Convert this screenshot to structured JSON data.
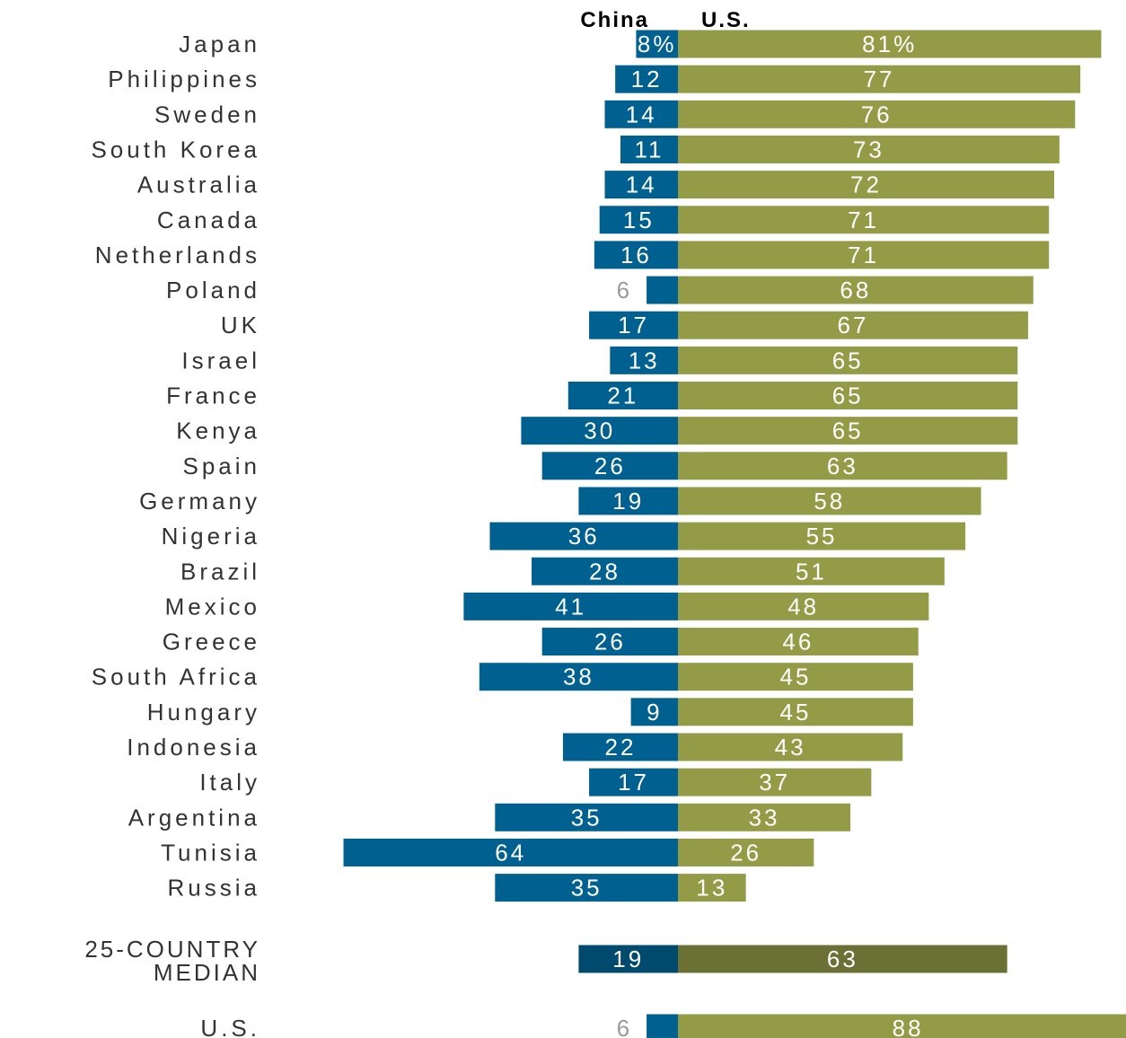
{
  "chart_data": {
    "type": "bar",
    "orientation": "horizontal-diverging",
    "series": [
      {
        "name": "China",
        "color": "#00608f",
        "median_color": "#004a6e"
      },
      {
        "name": "U.S.",
        "color": "#949b47",
        "median_color": "#6b7134"
      }
    ],
    "value_label_color_outside": "#999999",
    "value_label_color_inside": "#ffffff",
    "rows": [
      {
        "country": "Japan",
        "china": 8,
        "us": 81,
        "china_label": "8%",
        "us_label": "81%"
      },
      {
        "country": "Philippines",
        "china": 12,
        "us": 77,
        "china_label": "12",
        "us_label": "77"
      },
      {
        "country": "Sweden",
        "china": 14,
        "us": 76,
        "china_label": "14",
        "us_label": "76"
      },
      {
        "country": "South Korea",
        "china": 11,
        "us": 73,
        "china_label": "11",
        "us_label": "73"
      },
      {
        "country": "Australia",
        "china": 14,
        "us": 72,
        "china_label": "14",
        "us_label": "72"
      },
      {
        "country": "Canada",
        "china": 15,
        "us": 71,
        "china_label": "15",
        "us_label": "71"
      },
      {
        "country": "Netherlands",
        "china": 16,
        "us": 71,
        "china_label": "16",
        "us_label": "71"
      },
      {
        "country": "Poland",
        "china": 6,
        "us": 68,
        "china_label": "6",
        "us_label": "68"
      },
      {
        "country": "UK",
        "china": 17,
        "us": 67,
        "china_label": "17",
        "us_label": "67"
      },
      {
        "country": "Israel",
        "china": 13,
        "us": 65,
        "china_label": "13",
        "us_label": "65"
      },
      {
        "country": "France",
        "china": 21,
        "us": 65,
        "china_label": "21",
        "us_label": "65"
      },
      {
        "country": "Kenya",
        "china": 30,
        "us": 65,
        "china_label": "30",
        "us_label": "65"
      },
      {
        "country": "Spain",
        "china": 26,
        "us": 63,
        "china_label": "26",
        "us_label": "63"
      },
      {
        "country": "Germany",
        "china": 19,
        "us": 58,
        "china_label": "19",
        "us_label": "58"
      },
      {
        "country": "Nigeria",
        "china": 36,
        "us": 55,
        "china_label": "36",
        "us_label": "55"
      },
      {
        "country": "Brazil",
        "china": 28,
        "us": 51,
        "china_label": "28",
        "us_label": "51"
      },
      {
        "country": "Mexico",
        "china": 41,
        "us": 48,
        "china_label": "41",
        "us_label": "48"
      },
      {
        "country": "Greece",
        "china": 26,
        "us": 46,
        "china_label": "26",
        "us_label": "46"
      },
      {
        "country": "South Africa",
        "china": 38,
        "us": 45,
        "china_label": "38",
        "us_label": "45"
      },
      {
        "country": "Hungary",
        "china": 9,
        "us": 45,
        "china_label": "9",
        "us_label": "45"
      },
      {
        "country": "Indonesia",
        "china": 22,
        "us": 43,
        "china_label": "22",
        "us_label": "43"
      },
      {
        "country": "Italy",
        "china": 17,
        "us": 37,
        "china_label": "17",
        "us_label": "37"
      },
      {
        "country": "Argentina",
        "china": 35,
        "us": 33,
        "china_label": "35",
        "us_label": "33"
      },
      {
        "country": "Tunisia",
        "china": 64,
        "us": 26,
        "china_label": "64",
        "us_label": "26"
      },
      {
        "country": "Russia",
        "china": 35,
        "us": 13,
        "china_label": "35",
        "us_label": "13"
      }
    ],
    "median": {
      "label_line1": "25-COUNTRY",
      "label_line2": "MEDIAN",
      "china": 19,
      "us": 63,
      "china_label": "19",
      "us_label": "63"
    },
    "us_row": {
      "country": "U.S.",
      "china": 6,
      "us": 88,
      "china_label": "6",
      "us_label": "88"
    }
  }
}
